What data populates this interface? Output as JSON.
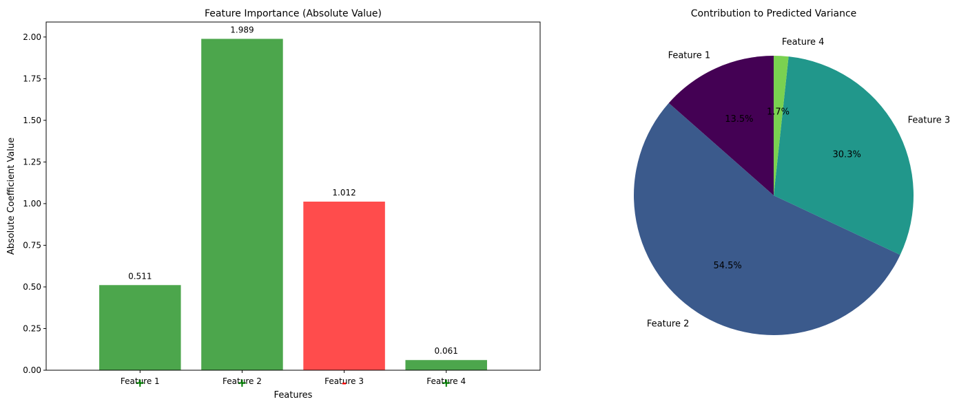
{
  "chart_data": [
    {
      "type": "bar",
      "title": "Feature Importance (Absolute Value)",
      "xlabel": "Features",
      "ylabel": "Absolute Coefficient Value",
      "categories": [
        "Feature 1",
        "Feature 2",
        "Feature 3",
        "Feature 4"
      ],
      "values": [
        0.511,
        1.989,
        1.012,
        0.061
      ],
      "value_labels": [
        "0.511",
        "1.989",
        "1.012",
        "0.061"
      ],
      "sign_markers": [
        "+",
        "+",
        "-",
        "+"
      ],
      "bar_colors": [
        "#4ca64c",
        "#4ca64c",
        "#ff4c4c",
        "#4ca64c"
      ],
      "marker_colors": [
        "#008000",
        "#008000",
        "#ff0000",
        "#008000"
      ],
      "ylim": [
        0,
        2.09
      ],
      "yticks": [
        0,
        0.25,
        0.5,
        0.75,
        1.0,
        1.25,
        1.5,
        1.75,
        2.0
      ],
      "ytick_labels": [
        "0.00",
        "0.25",
        "0.50",
        "0.75",
        "1.00",
        "1.25",
        "1.50",
        "1.75",
        "2.00"
      ],
      "grid": false,
      "legend": false
    },
    {
      "type": "pie",
      "title": "Contribution to Predicted Variance",
      "labels": [
        "Feature 1",
        "Feature 2",
        "Feature 3",
        "Feature 4"
      ],
      "values": [
        13.5,
        54.5,
        30.3,
        1.7
      ],
      "pct_labels": [
        "13.5%",
        "54.5%",
        "30.3%",
        "1.7%"
      ],
      "colors": [
        "#440154",
        "#3b5a8c",
        "#21978b",
        "#7ad151"
      ],
      "start_angle": 90,
      "direction": "counterclockwise"
    }
  ]
}
